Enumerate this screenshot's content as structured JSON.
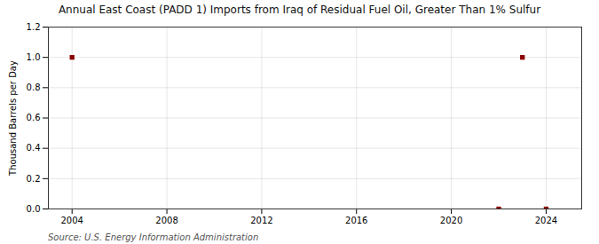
{
  "chart_data": {
    "type": "scatter",
    "title": "Annual East Coast (PADD 1) Imports from Iraq of Residual Fuel Oil, Greater Than 1% Sulfur",
    "ylabel": "Thousand Barrels per Day",
    "source": "Source: U.S. Energy Information Administration",
    "x": [
      2004,
      2022,
      2023,
      2024
    ],
    "values": [
      1.0,
      0.0,
      1.0,
      0.0
    ],
    "color": "#8b0000",
    "marker": "square",
    "xlim": [
      2003.0,
      2025.5
    ],
    "ylim": [
      0.0,
      1.2
    ],
    "xticks": [
      2004,
      2008,
      2012,
      2016,
      2020,
      2024
    ],
    "yticks": [
      {
        "value": 0.0,
        "label": "0.0"
      },
      0.2,
      0.4,
      0.6,
      0.8,
      {
        "value": 1.0,
        "label": "1.0"
      },
      1.2
    ],
    "grid": true
  }
}
